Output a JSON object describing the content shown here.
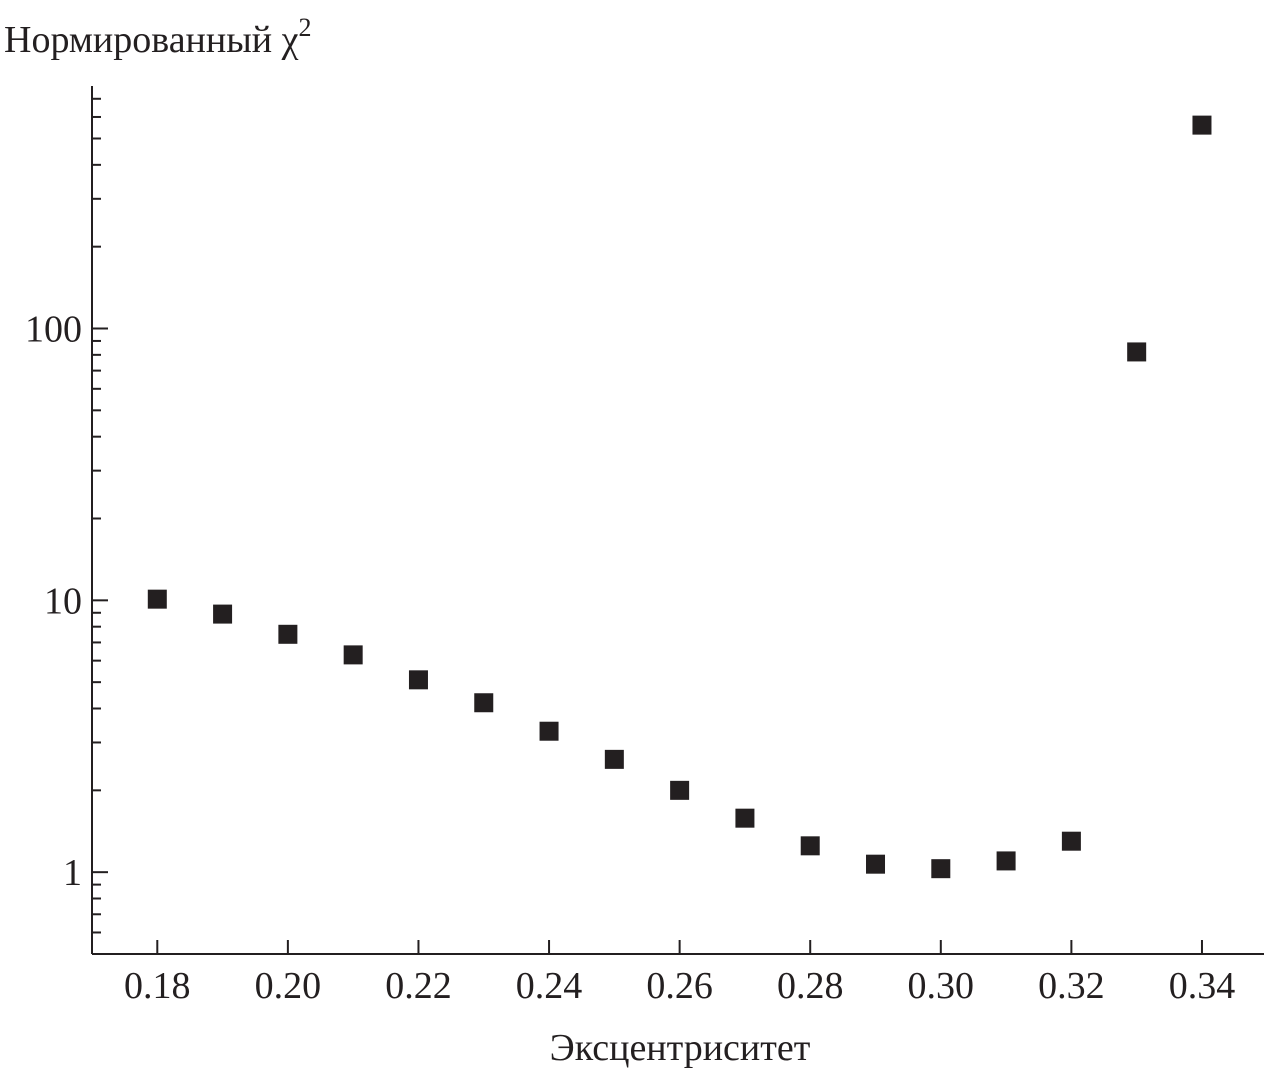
{
  "chart_data": {
    "type": "scatter",
    "title": "",
    "ylabel": "Нормированный χ",
    "ylabel_superscript": "2",
    "xlabel": "Эксцентриситет",
    "y_scale": "log",
    "xlim": [
      0.17,
      0.3495
    ],
    "ylim": [
      0.5,
      780
    ],
    "x_ticks": [
      0.18,
      0.2,
      0.22,
      0.24,
      0.26,
      0.28,
      0.3,
      0.32,
      0.34
    ],
    "x_tick_labels": [
      "0.18",
      "0.20",
      "0.22",
      "0.24",
      "0.26",
      "0.28",
      "0.30",
      "0.32",
      "0.34"
    ],
    "y_ticks": [
      1,
      10,
      100
    ],
    "y_tick_labels": [
      "1",
      "10",
      "100"
    ],
    "grid": false,
    "legend": "none",
    "marker": "square",
    "marker_color": "#231f20",
    "series": [
      {
        "x": [
          0.18,
          0.19,
          0.2,
          0.21,
          0.22,
          0.23,
          0.24,
          0.25,
          0.26,
          0.27,
          0.28,
          0.29,
          0.3,
          0.31,
          0.32,
          0.33,
          0.34
        ],
        "y": [
          10.1,
          8.9,
          7.5,
          6.3,
          5.1,
          4.2,
          3.3,
          2.6,
          2.0,
          1.58,
          1.25,
          1.07,
          1.03,
          1.1,
          1.3,
          82,
          560
        ]
      }
    ]
  }
}
